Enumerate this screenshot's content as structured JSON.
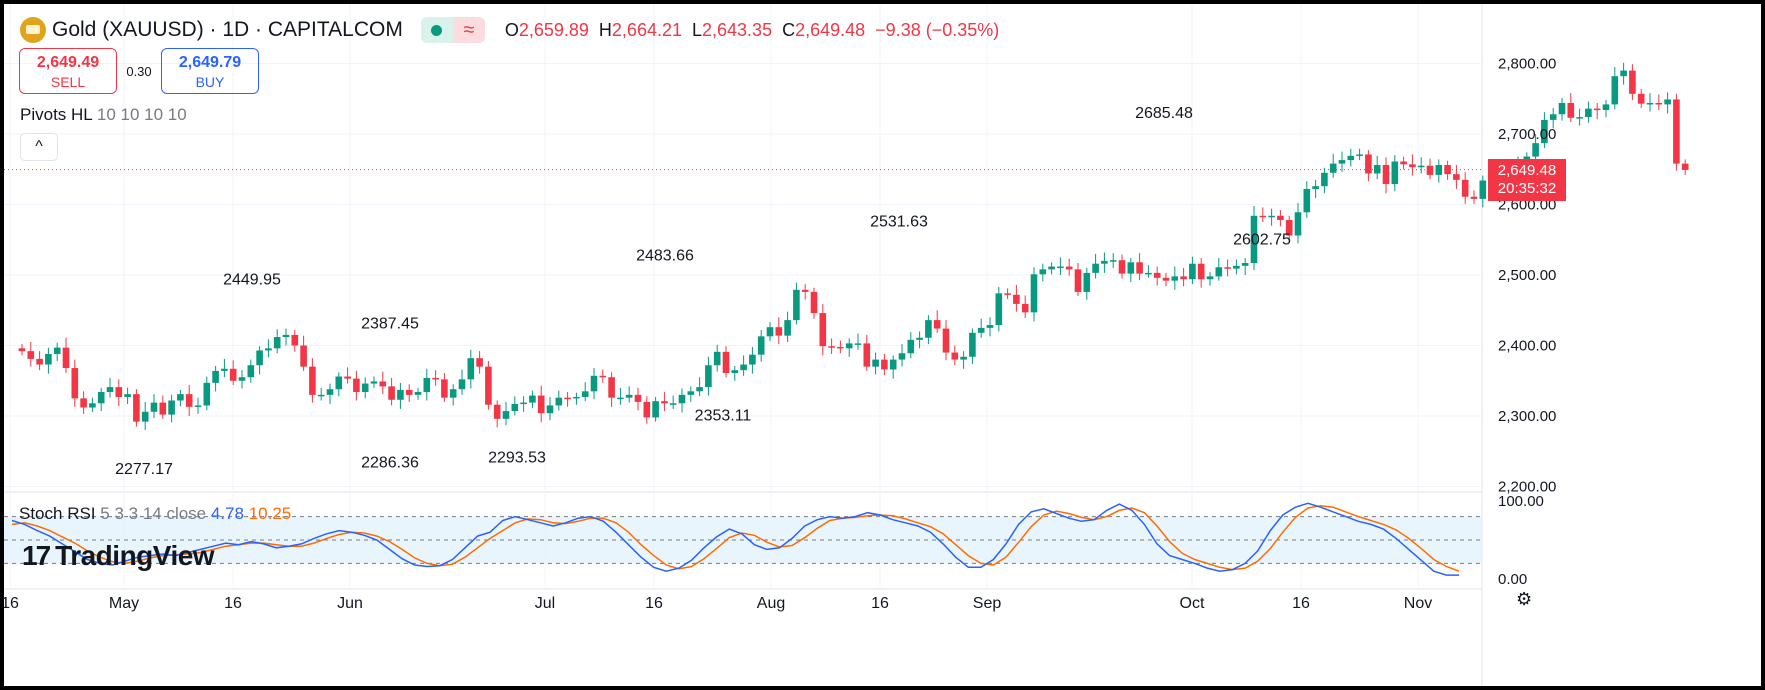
{
  "header": {
    "symbol_title": "Gold (XAUUSD) · 1D · CAPITALCOM",
    "status_icon": "market-open-dot",
    "wave_icon": "≈",
    "ohlc": [
      {
        "key": "O",
        "value": "2,659.89"
      },
      {
        "key": "H",
        "value": "2,664.21"
      },
      {
        "key": "L",
        "value": "2,643.35"
      },
      {
        "key": "C",
        "value": "2,649.48"
      }
    ],
    "change": "−9.38 (−0.35%)"
  },
  "trade": {
    "sell_price": "2,649.49",
    "sell_label": "SELL",
    "spread": "0.30",
    "buy_price": "2,649.79",
    "buy_label": "BUY"
  },
  "pivots": {
    "name": "Pivots HL",
    "params": "10 10 10 10",
    "collapse_icon": "^"
  },
  "stoch": {
    "name": "Stoch RSI",
    "params": "5 3 3 14 close",
    "k_value": "4.78",
    "d_value": "10.25"
  },
  "brand": {
    "mark": "17",
    "name": "TradingView"
  },
  "last_price": {
    "price": "2,649.48",
    "countdown": "20:35:32"
  },
  "colors": {
    "up": "#089981",
    "down": "#f23645",
    "k_line": "#2962ff",
    "d_line": "#ff6d00",
    "band_fill": "#e3f2fd"
  },
  "chart_data": {
    "type": "candlestick",
    "title": "Gold (XAUUSD) · 1D · CAPITALCOM",
    "price_axis": {
      "ticks": [
        2200,
        2300,
        2400,
        2500,
        2600,
        2700,
        2800
      ],
      "tick_labels": [
        "2,200.00",
        "2,300.00",
        "2,400.00",
        "2,500.00",
        "2,600.00",
        "2,700.00",
        "2,800.00"
      ]
    },
    "time_axis": {
      "labels": [
        "16",
        "May",
        "16",
        "Jun",
        "Jul",
        "16",
        "Aug",
        "16",
        "Sep",
        "Oct",
        "16",
        "Nov"
      ]
    },
    "pivot_labels": [
      {
        "text": "2449.95",
        "kind": "high"
      },
      {
        "text": "2387.45",
        "kind": "high"
      },
      {
        "text": "2483.66",
        "kind": "high"
      },
      {
        "text": "2531.63",
        "kind": "high"
      },
      {
        "text": "2685.48",
        "kind": "high"
      },
      {
        "text": "2277.17",
        "kind": "low"
      },
      {
        "text": "2286.36",
        "kind": "low"
      },
      {
        "text": "2293.53",
        "kind": "low"
      },
      {
        "text": "2353.11",
        "kind": "low"
      },
      {
        "text": "2602.75",
        "kind": "low"
      }
    ],
    "closes": [
      2392,
      2381,
      2373,
      2388,
      2397,
      2368,
      2325,
      2312,
      2318,
      2334,
      2341,
      2327,
      2331,
      2292,
      2306,
      2319,
      2302,
      2322,
      2331,
      2313,
      2315,
      2347,
      2364,
      2367,
      2350,
      2355,
      2372,
      2393,
      2396,
      2412,
      2415,
      2400,
      2370,
      2330,
      2330,
      2338,
      2356,
      2353,
      2334,
      2346,
      2349,
      2342,
      2323,
      2337,
      2330,
      2334,
      2354,
      2352,
      2326,
      2338,
      2352,
      2382,
      2370,
      2316,
      2296,
      2307,
      2317,
      2319,
      2329,
      2304,
      2315,
      2326,
      2325,
      2327,
      2335,
      2357,
      2355,
      2326,
      2326,
      2330,
      2320,
      2298,
      2321,
      2318,
      2318,
      2330,
      2335,
      2341,
      2372,
      2391,
      2361,
      2365,
      2373,
      2387,
      2413,
      2426,
      2414,
      2436,
      2479,
      2476,
      2446,
      2399,
      2398,
      2396,
      2403,
      2403,
      2370,
      2380,
      2366,
      2380,
      2389,
      2408,
      2411,
      2436,
      2424,
      2390,
      2380,
      2384,
      2418,
      2425,
      2429,
      2474,
      2472,
      2459,
      2447,
      2501,
      2508,
      2512,
      2512,
      2508,
      2476,
      2503,
      2516,
      2520,
      2521,
      2502,
      2518,
      2502,
      2503,
      2496,
      2492,
      2498,
      2494,
      2516,
      2494,
      2498,
      2511,
      2509,
      2513,
      2517,
      2584,
      2582,
      2584,
      2578,
      2556,
      2589,
      2622,
      2626,
      2645,
      2658,
      2663,
      2669,
      2671,
      2644,
      2656,
      2629,
      2661,
      2657,
      2653,
      2655,
      2642,
      2656,
      2643,
      2635,
      2611,
      2608,
      2634,
      2645,
      2650,
      2647,
      2660,
      2668,
      2687,
      2720,
      2728,
      2744,
      2723,
      2724,
      2736,
      2734,
      2742,
      2782,
      2790,
      2757,
      2743,
      2744,
      2742,
      2749,
      2658,
      2649
    ],
    "stoch_rsi": {
      "ylim": [
        0,
        100
      ],
      "ticks": [
        0,
        100
      ],
      "tick_labels": [
        "0.00",
        "100.00"
      ],
      "bands": [
        20,
        50,
        80
      ],
      "k": [
        75,
        70,
        62,
        55,
        45,
        35,
        25,
        20,
        18,
        23,
        28,
        30,
        32,
        30,
        34,
        38,
        42,
        46,
        44,
        48,
        45,
        40,
        42,
        45,
        52,
        58,
        62,
        60,
        56,
        50,
        38,
        26,
        18,
        16,
        17,
        25,
        40,
        55,
        60,
        75,
        80,
        76,
        72,
        68,
        72,
        78,
        80,
        74,
        60,
        44,
        28,
        15,
        10,
        14,
        24,
        40,
        54,
        64,
        58,
        44,
        38,
        40,
        52,
        68,
        76,
        80,
        78,
        80,
        85,
        82,
        76,
        72,
        68,
        60,
        45,
        28,
        15,
        15,
        25,
        45,
        70,
        86,
        90,
        84,
        78,
        74,
        76,
        88,
        96,
        88,
        70,
        45,
        30,
        25,
        20,
        14,
        10,
        12,
        20,
        36,
        62,
        82,
        92,
        97,
        92,
        86,
        80,
        74,
        70,
        64,
        52,
        38,
        24,
        10,
        5,
        5
      ],
      "d": [
        70,
        72,
        68,
        62,
        54,
        46,
        36,
        28,
        22,
        20,
        23,
        27,
        30,
        31,
        32,
        34,
        38,
        42,
        44,
        46,
        46,
        44,
        42,
        42,
        46,
        52,
        57,
        60,
        59,
        55,
        48,
        38,
        27,
        20,
        17,
        19,
        28,
        40,
        52,
        62,
        72,
        77,
        76,
        72,
        71,
        74,
        78,
        78,
        72,
        60,
        44,
        30,
        18,
        13,
        16,
        26,
        39,
        53,
        59,
        56,
        47,
        41,
        43,
        53,
        65,
        75,
        78,
        79,
        81,
        82,
        81,
        77,
        72,
        67,
        58,
        44,
        30,
        20,
        18,
        28,
        47,
        67,
        82,
        87,
        84,
        79,
        76,
        80,
        88,
        91,
        85,
        68,
        48,
        33,
        25,
        20,
        15,
        12,
        14,
        23,
        39,
        60,
        79,
        91,
        94,
        92,
        86,
        80,
        75,
        70,
        63,
        52,
        39,
        25,
        16,
        10
      ]
    }
  }
}
